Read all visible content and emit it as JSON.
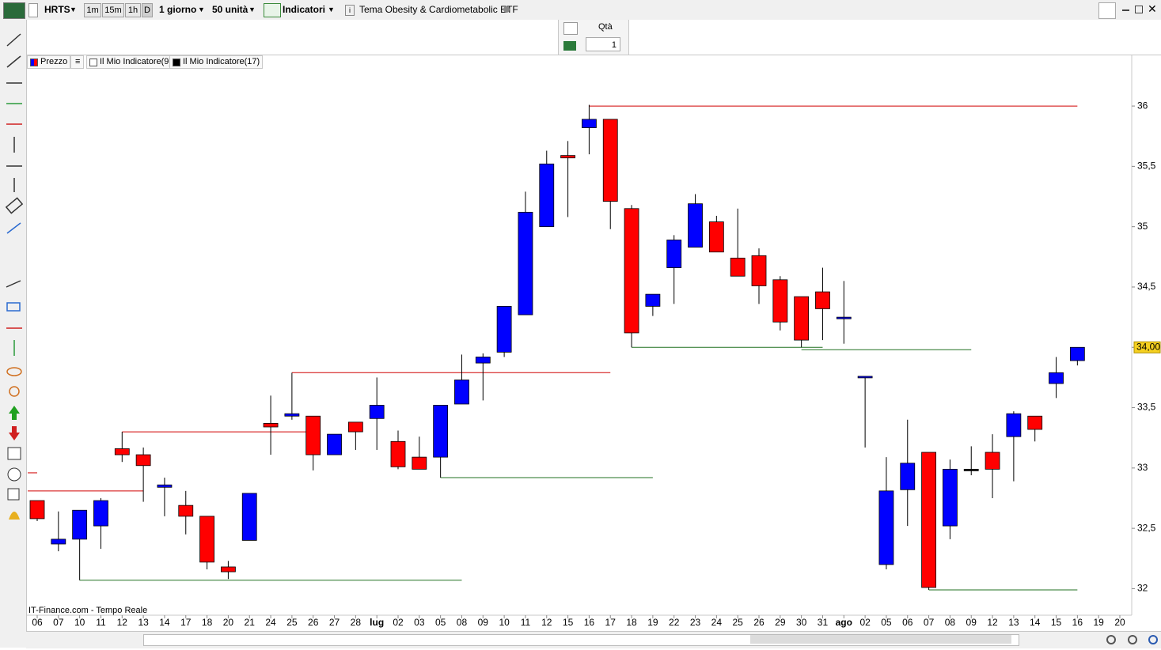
{
  "toolbar": {
    "symbol": "HRTS",
    "intervals": [
      "1m",
      "15m",
      "1h",
      "D"
    ],
    "period": "1 giorno",
    "units": "50 unità",
    "indicators": "Indicatori",
    "instrument": "Tema Obesity & Cardiometabolic ETF"
  },
  "order_panel": {
    "label": "Qtà",
    "quantity": "1"
  },
  "chart_data": {
    "type": "candlestick",
    "source": "IT-Finance.com - Tempo Reale",
    "categories": [
      "06",
      "07",
      "10",
      "11",
      "12",
      "13",
      "14",
      "17",
      "18",
      "20",
      "21",
      "24",
      "25",
      "26",
      "27",
      "28",
      "lug",
      "02",
      "03",
      "05",
      "08",
      "09",
      "10",
      "11",
      "12",
      "15",
      "16",
      "17",
      "18",
      "19",
      "22",
      "23",
      "24",
      "25",
      "26",
      "29",
      "30",
      "31",
      "ago",
      "02",
      "05",
      "06",
      "07",
      "08",
      "09",
      "12",
      "13",
      "14",
      "15",
      "16",
      "19",
      "20"
    ],
    "series": [
      {
        "name": "Prezzo",
        "up_color": "#0000ff",
        "down_color": "#ff0000",
        "flat_color": "#000000",
        "open": [
          32.73,
          32.37,
          32.41,
          32.52,
          33.16,
          33.11,
          32.84,
          32.69,
          32.6,
          32.18,
          32.4,
          33.37,
          33.43,
          33.43,
          33.11,
          33.38,
          33.41,
          33.22,
          33.09,
          33.09,
          33.53,
          33.87,
          33.96,
          34.27,
          35.0,
          35.59,
          35.82,
          35.89,
          35.15,
          34.34,
          34.66,
          34.83,
          35.04,
          34.74,
          34.76,
          34.56,
          34.42,
          34.46,
          34.24,
          33.75,
          32.2,
          32.82,
          33.13,
          32.52,
          32.99,
          33.13,
          33.26,
          33.43,
          33.7,
          33.89,
          null,
          null
        ],
        "high": [
          32.73,
          32.64,
          32.65,
          32.75,
          33.3,
          33.17,
          32.92,
          32.81,
          32.6,
          32.23,
          32.79,
          33.6,
          33.79,
          33.43,
          33.28,
          33.38,
          33.75,
          33.31,
          33.26,
          33.52,
          33.94,
          33.95,
          34.34,
          35.29,
          35.63,
          35.71,
          36.01,
          35.89,
          35.18,
          34.44,
          34.93,
          35.27,
          35.09,
          35.15,
          34.82,
          34.59,
          34.42,
          34.66,
          34.55,
          33.76,
          33.09,
          33.4,
          33.13,
          33.07,
          33.18,
          33.28,
          33.47,
          33.43,
          33.92,
          34.0,
          null,
          null
        ],
        "low": [
          32.56,
          32.31,
          32.07,
          32.33,
          33.05,
          32.72,
          32.6,
          32.45,
          32.16,
          32.08,
          32.4,
          33.11,
          33.4,
          32.98,
          33.11,
          33.15,
          33.15,
          32.99,
          32.99,
          32.92,
          33.53,
          33.56,
          33.92,
          34.27,
          35.0,
          35.08,
          35.6,
          34.98,
          34.0,
          34.26,
          34.36,
          34.83,
          34.79,
          34.59,
          34.36,
          34.14,
          34.0,
          34.06,
          34.03,
          33.17,
          32.16,
          32.52,
          31.99,
          32.41,
          32.94,
          32.75,
          32.89,
          33.22,
          33.58,
          33.85,
          null,
          null
        ],
        "close": [
          32.58,
          32.41,
          32.65,
          32.73,
          33.11,
          33.02,
          32.86,
          32.6,
          32.22,
          32.14,
          32.79,
          33.34,
          33.45,
          33.11,
          33.28,
          33.3,
          33.52,
          33.01,
          32.99,
          33.52,
          33.73,
          33.92,
          34.34,
          35.12,
          35.52,
          35.57,
          35.89,
          35.21,
          34.12,
          34.44,
          34.89,
          35.19,
          34.79,
          34.59,
          34.51,
          34.21,
          34.06,
          34.32,
          34.25,
          33.76,
          32.81,
          33.04,
          32.01,
          32.99,
          32.99,
          32.99,
          33.45,
          33.32,
          33.79,
          34.0,
          null,
          null
        ]
      }
    ],
    "indicators": [
      {
        "name": "Il Mio Indicatore(9)",
        "color": "#ffffff"
      },
      {
        "name": "Il Mio Indicatore(17)",
        "color": "#000000"
      }
    ],
    "levels": [
      {
        "value": 36.0,
        "color": "#d00000",
        "start": 26,
        "end": 49
      },
      {
        "value": 33.79,
        "color": "#d00000",
        "start": 12,
        "end": 27
      },
      {
        "value": 33.3,
        "color": "#d00000",
        "start": 4,
        "end": 13
      },
      {
        "value": 32.81,
        "color": "#d00000",
        "start": 0,
        "end": 5
      },
      {
        "value": 32.96,
        "color": "#d00000",
        "start": 0,
        "end": 0
      },
      {
        "value": 32.07,
        "color": "#207020",
        "start": 2,
        "end": 20
      },
      {
        "value": 32.92,
        "color": "#207020",
        "start": 19,
        "end": 29
      },
      {
        "value": 34.0,
        "color": "#207020",
        "start": 28,
        "end": 37
      },
      {
        "value": 33.98,
        "color": "#207020",
        "start": 36,
        "end": 44
      },
      {
        "value": 31.99,
        "color": "#207020",
        "start": 42,
        "end": 49
      }
    ],
    "last_price": {
      "value": 34.0,
      "label": "34,00"
    },
    "ylim": [
      31.78,
      36.42
    ],
    "yticks": [
      32,
      {
        "value": 32.5,
        "label": "32,5"
      },
      33,
      {
        "value": 33.5,
        "label": "33,5"
      },
      34,
      {
        "value": 34.5,
        "label": "34,5"
      },
      35,
      {
        "value": 35.5,
        "label": "35,5"
      },
      36
    ],
    "grid": false
  }
}
